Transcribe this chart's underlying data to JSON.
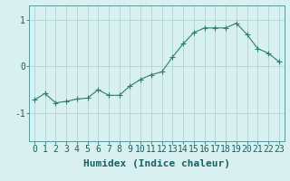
{
  "x": [
    0,
    1,
    2,
    3,
    4,
    5,
    6,
    7,
    8,
    9,
    10,
    11,
    12,
    13,
    14,
    15,
    16,
    17,
    18,
    19,
    20,
    21,
    22,
    23
  ],
  "y": [
    -0.72,
    -0.58,
    -0.78,
    -0.75,
    -0.7,
    -0.68,
    -0.5,
    -0.62,
    -0.62,
    -0.42,
    -0.28,
    -0.18,
    -0.12,
    0.2,
    0.48,
    0.72,
    0.82,
    0.82,
    0.82,
    0.92,
    0.68,
    0.38,
    0.28,
    0.1
  ],
  "line_color": "#2e7d6e",
  "marker": "+",
  "marker_size": 4,
  "bg_color": "#d8f0f0",
  "grid_color": "#b0d4d4",
  "xlabel": "Humidex (Indice chaleur)",
  "xlabel_fontsize": 8,
  "tick_fontsize": 7,
  "ylim": [
    -1.6,
    1.3
  ],
  "yticks": [
    -1,
    0,
    1
  ],
  "xlim": [
    -0.5,
    23.5
  ],
  "xticks": [
    0,
    1,
    2,
    3,
    4,
    5,
    6,
    7,
    8,
    9,
    10,
    11,
    12,
    13,
    14,
    15,
    16,
    17,
    18,
    19,
    20,
    21,
    22,
    23
  ]
}
